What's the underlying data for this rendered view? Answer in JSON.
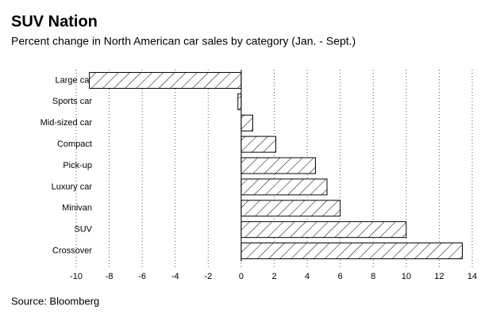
{
  "chart_data": {
    "type": "barh",
    "title": "SUV Nation",
    "subtitle": "Percent change in North American car sales by category (Jan. - Sept.)",
    "source": "Source: Bloomberg",
    "categories": [
      "Large car",
      "Sports car",
      "Mid-sized car",
      "Compact",
      "Pick-up",
      "Luxury car",
      "Minivan",
      "SUV",
      "Crossover"
    ],
    "values": [
      -9.2,
      -0.2,
      0.7,
      2.1,
      4.5,
      5.2,
      6.0,
      10.0,
      13.4
    ],
    "color": "#000000",
    "xlim": [
      -10,
      14
    ],
    "xticks": [
      -10,
      -8,
      -6,
      -4,
      -2,
      0,
      2,
      4,
      6,
      8,
      10,
      12,
      14
    ],
    "grid": true
  }
}
